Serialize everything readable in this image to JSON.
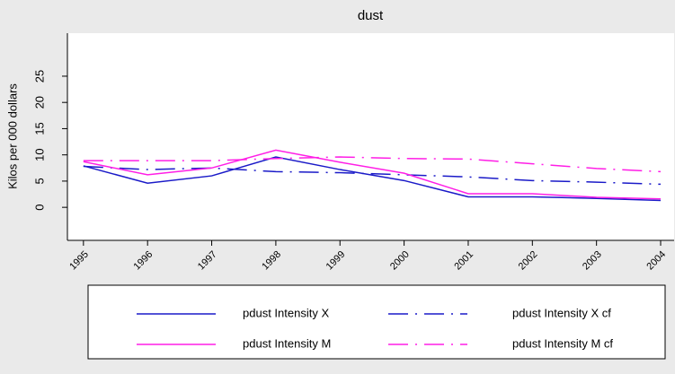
{
  "chart_data": {
    "type": "line",
    "title": "dust",
    "y_label": "Kilos per 000 dollars",
    "x": [
      1995,
      1996,
      1997,
      1998,
      1999,
      2000,
      2001,
      2002,
      2003,
      2004
    ],
    "xlim": [
      1994.75,
      2004.21
    ],
    "xticks": [
      1995,
      1996,
      1997,
      1998,
      1999,
      2000,
      2001,
      2002,
      2003,
      2004
    ],
    "ylim": [
      -6.3,
      33.2
    ],
    "yticks": [
      0,
      5,
      10,
      15,
      20,
      25
    ],
    "series": [
      {
        "name": "pdust Intensity X",
        "color": "#1a1ac8",
        "style": "solid",
        "values": [
          7.9,
          4.6,
          6.0,
          9.6,
          7.2,
          5.1,
          2.0,
          2.0,
          1.7,
          1.3
        ]
      },
      {
        "name": "pdust Intensity X cf",
        "color": "#1a1ac8",
        "style": "dashed",
        "values": [
          7.8,
          7.2,
          7.5,
          6.8,
          6.6,
          6.2,
          5.8,
          5.1,
          4.8,
          4.4
        ]
      },
      {
        "name": "pdust Intensity M",
        "color": "#ff1ee6",
        "style": "solid",
        "values": [
          8.7,
          6.2,
          7.5,
          10.9,
          8.6,
          6.5,
          2.6,
          2.6,
          1.9,
          1.6
        ]
      },
      {
        "name": "pdust Intensity M cf",
        "color": "#ff1ee6",
        "style": "dashed",
        "values": [
          8.9,
          8.9,
          8.9,
          9.3,
          9.6,
          9.3,
          9.2,
          8.3,
          7.4,
          6.8
        ]
      }
    ]
  }
}
